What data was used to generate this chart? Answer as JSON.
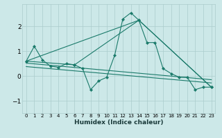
{
  "xlabel": "Humidex (Indice chaleur)",
  "xlim": [
    -0.5,
    23.5
  ],
  "ylim": [
    -1.5,
    2.9
  ],
  "yticks": [
    -1,
    0,
    1,
    2
  ],
  "xticks": [
    0,
    1,
    2,
    3,
    4,
    5,
    6,
    7,
    8,
    9,
    10,
    11,
    12,
    13,
    14,
    15,
    16,
    17,
    18,
    19,
    20,
    21,
    22,
    23
  ],
  "bg_color": "#cce8e8",
  "grid_color": "#aacccc",
  "line_color": "#1a7a6a",
  "lines": [
    {
      "x": [
        0,
        1,
        2,
        3,
        4,
        5,
        6,
        7,
        8,
        9,
        10,
        11,
        12,
        13,
        14,
        15,
        16,
        17,
        18,
        19,
        20,
        21,
        22,
        23
      ],
      "y": [
        0.6,
        1.2,
        0.65,
        0.4,
        0.35,
        0.5,
        0.45,
        0.3,
        -0.55,
        -0.2,
        -0.05,
        0.85,
        2.3,
        2.55,
        2.25,
        1.35,
        1.35,
        0.3,
        0.1,
        -0.05,
        -0.05,
        -0.55,
        -0.45,
        -0.45
      ],
      "has_markers": true
    },
    {
      "x": [
        0,
        6,
        14,
        23
      ],
      "y": [
        0.6,
        0.45,
        2.25,
        -0.45
      ],
      "has_markers": true
    },
    {
      "x": [
        0,
        14,
        23
      ],
      "y": [
        0.6,
        2.25,
        -0.45
      ],
      "has_markers": false
    },
    {
      "x": [
        0,
        23
      ],
      "y": [
        0.52,
        -0.15
      ],
      "has_markers": false
    },
    {
      "x": [
        0,
        23
      ],
      "y": [
        0.38,
        -0.28
      ],
      "has_markers": false
    }
  ]
}
